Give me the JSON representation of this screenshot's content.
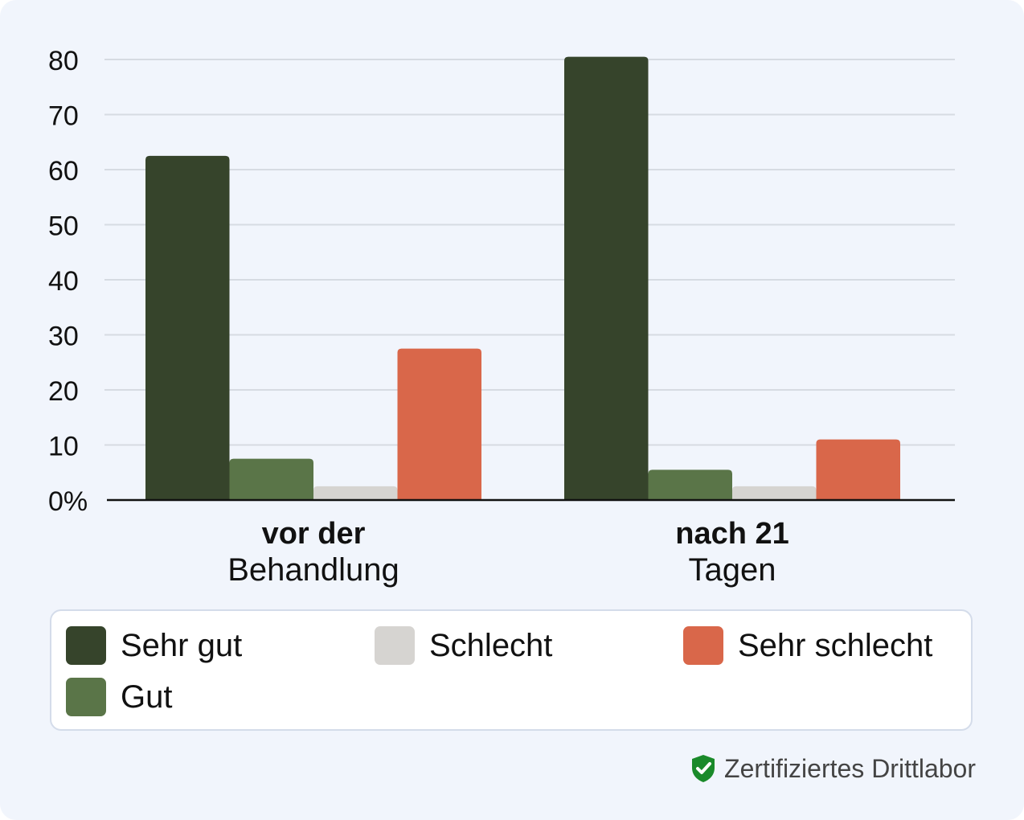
{
  "chart_data": {
    "type": "bar",
    "categories": [
      {
        "bold": "vor der",
        "normal": "Behandlung"
      },
      {
        "bold": "nach 21",
        "normal": "Tagen"
      }
    ],
    "series": [
      {
        "name": "Sehr gut",
        "color": "#36442b",
        "values": [
          62.5,
          80.5
        ]
      },
      {
        "name": "Gut",
        "color": "#5a7548",
        "values": [
          7.5,
          5.5
        ]
      },
      {
        "name": "Schlecht",
        "color": "#d6d4d1",
        "values": [
          2.5,
          2.5
        ]
      },
      {
        "name": "Sehr schlecht",
        "color": "#d9674a",
        "values": [
          27.5,
          11
        ]
      }
    ],
    "yticks": [
      "0%",
      "10",
      "20",
      "30",
      "40",
      "50",
      "60",
      "70",
      "80"
    ],
    "ylim": [
      0,
      80
    ],
    "grid": true,
    "legend_position": "bottom"
  },
  "legend": {
    "items": [
      {
        "label": "Sehr gut",
        "color": "#36442b"
      },
      {
        "label": "Schlecht",
        "color": "#d6d4d1"
      },
      {
        "label": "Sehr schlecht",
        "color": "#d9674a"
      },
      {
        "label": "Gut",
        "color": "#5a7548"
      }
    ]
  },
  "footer": {
    "cert_text": "Zertifiziertes Drittlabor",
    "cert_icon": "shield-check-icon",
    "cert_color": "#1a8a2a"
  }
}
